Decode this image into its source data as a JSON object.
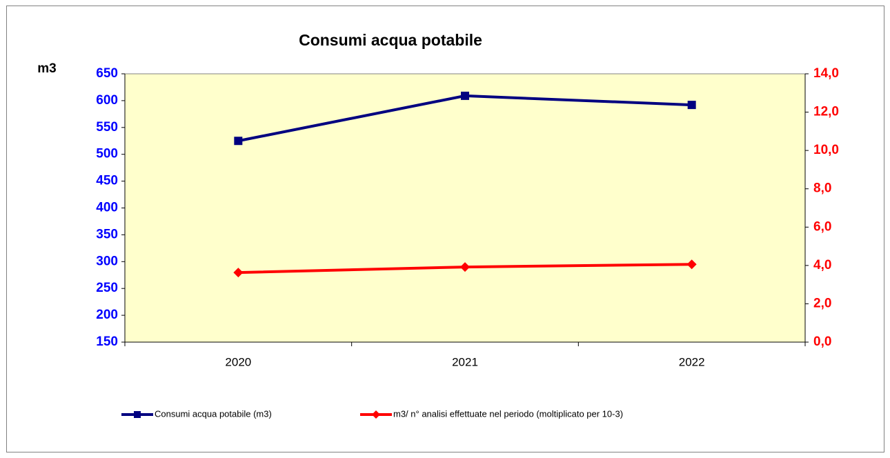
{
  "chart_data": {
    "type": "line",
    "title": "Consumi acqua potabile",
    "y_label": "m3",
    "categories": [
      "2020",
      "2021",
      "2022"
    ],
    "series": [
      {
        "name": "Consumi acqua potabile (m3)",
        "color": "#000080",
        "marker": "square",
        "values": [
          525,
          609,
          592
        ]
      },
      {
        "name": "m3/ n° analisi effettuate nel periodo (moltiplicato per 10-3)",
        "color": "#ff0000",
        "marker": "diamond",
        "axis": "y2",
        "values": [
          3.63,
          3.92,
          4.06
        ]
      }
    ],
    "ylim": [
      150,
      650
    ],
    "yticks": [
      150,
      200,
      250,
      300,
      350,
      400,
      450,
      500,
      550,
      600,
      650
    ],
    "y2lim": [
      0,
      14
    ],
    "y2ticks": [
      {
        "value": 0,
        "label": "0,0"
      },
      {
        "value": 2,
        "label": "2,0"
      },
      {
        "value": 4,
        "label": "4,0"
      },
      {
        "value": 6,
        "label": "6,0"
      },
      {
        "value": 8,
        "label": "8,0"
      },
      {
        "value": 10,
        "label": "10,0"
      },
      {
        "value": 12,
        "label": "12,0"
      },
      {
        "value": 14,
        "label": "14,0"
      }
    ],
    "y_color": "#0000ff",
    "y2_color": "#ff0000",
    "plot_background": "#ffffcc",
    "grid": false,
    "legend": "bottom"
  }
}
